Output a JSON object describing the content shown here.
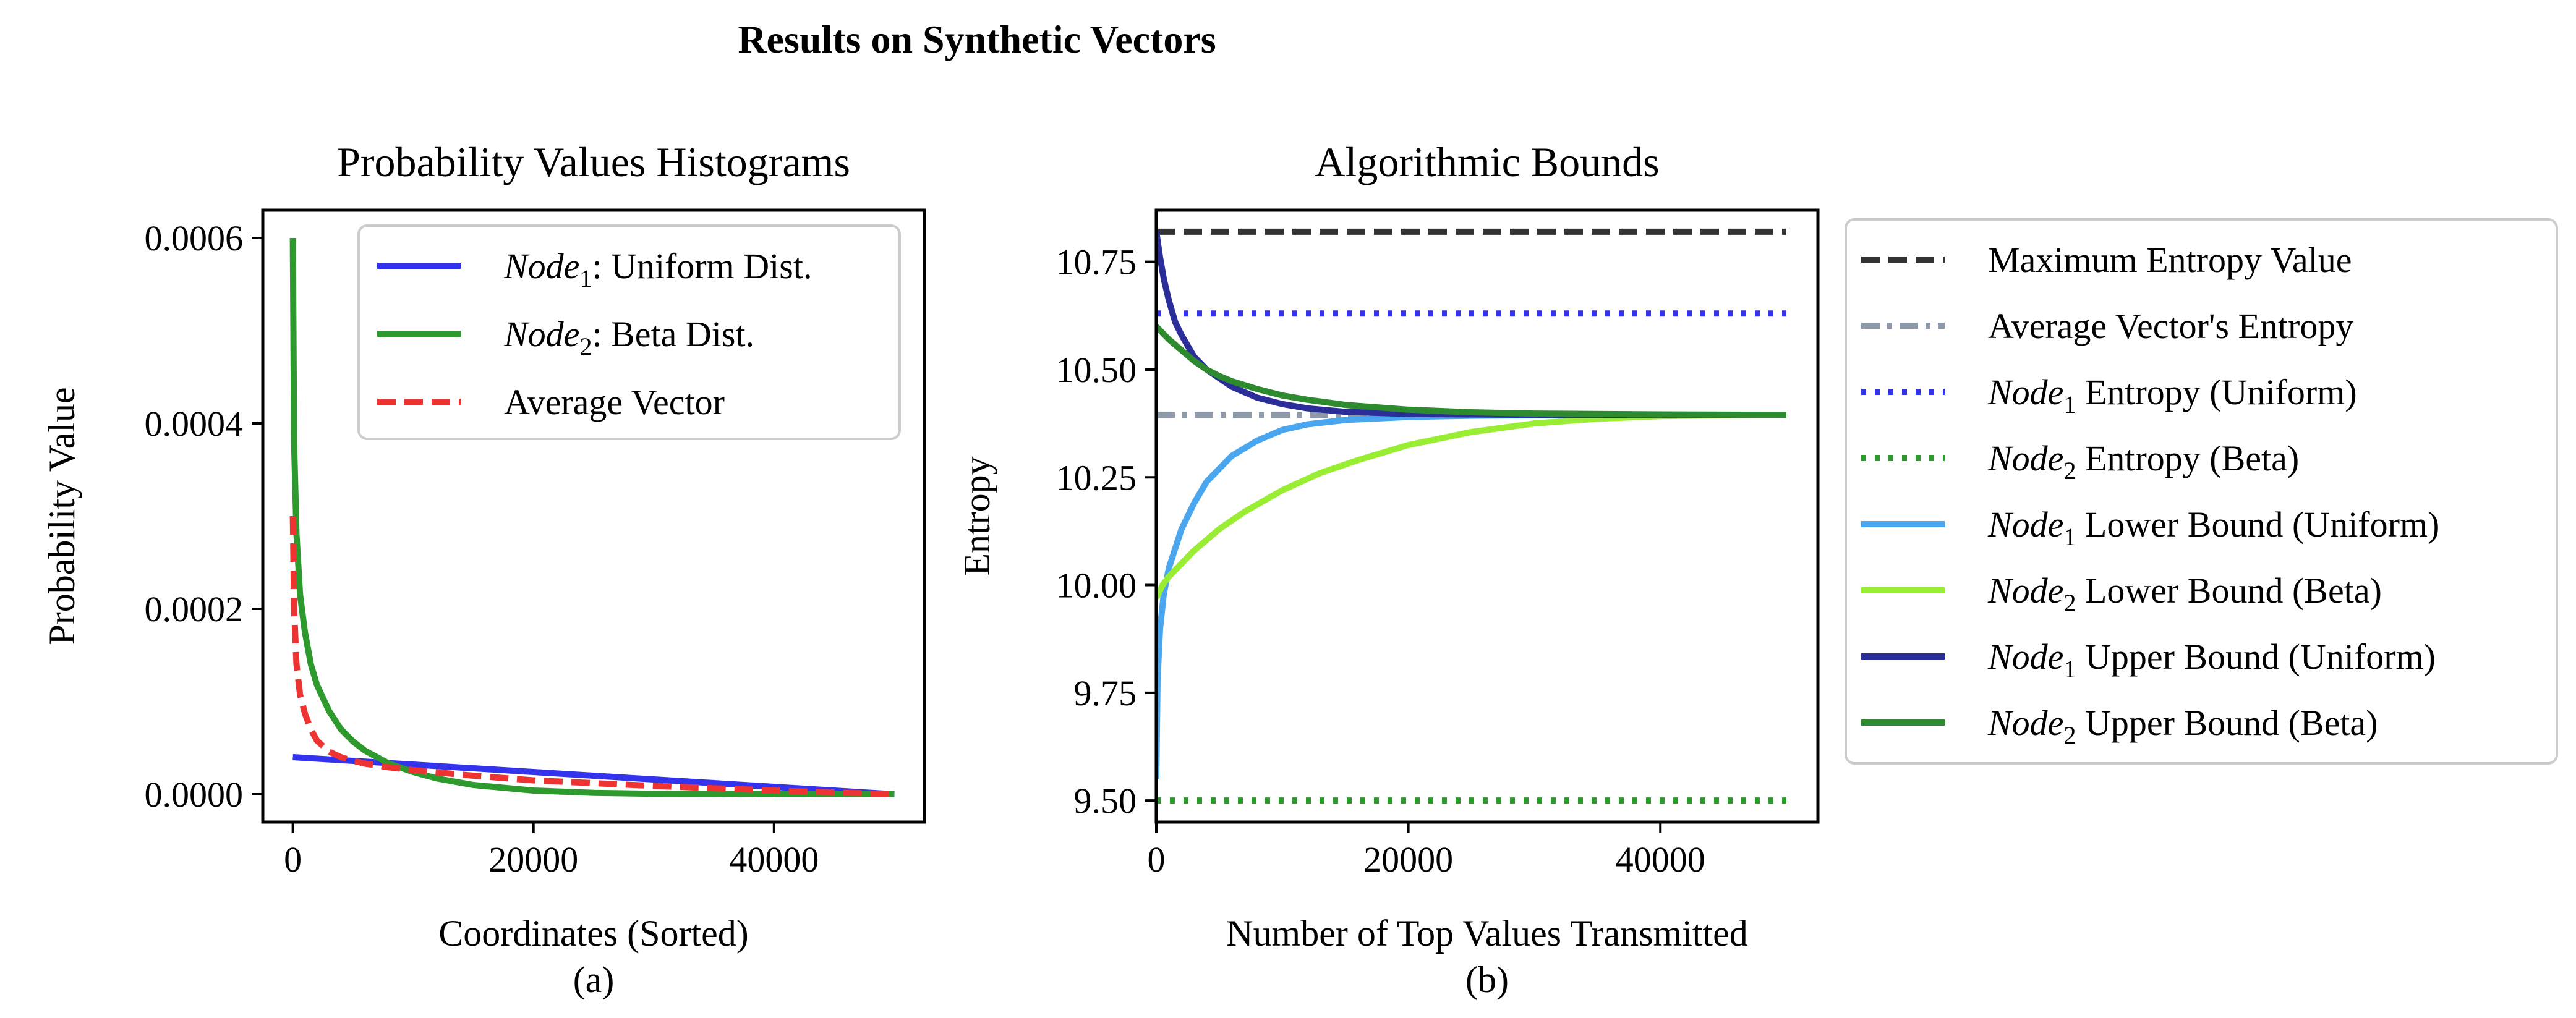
{
  "figure": {
    "suptitle": "Results on Synthetic Vectors"
  },
  "chart_data": [
    {
      "type": "line",
      "title": "Probability Values Histograms",
      "xlabel": "Coordinates (Sorted)",
      "ylabel": "Probability Value",
      "caption": "(a)",
      "xlim": [
        -2500,
        52500
      ],
      "ylim": [
        -3e-05,
        0.00063
      ],
      "xticks": [
        0,
        20000,
        40000
      ],
      "xtick_labels": [
        "0",
        "20000",
        "40000"
      ],
      "yticks": [
        0.0,
        0.0002,
        0.0004,
        0.0006
      ],
      "ytick_labels": [
        "0.0000",
        "0.0002",
        "0.0004",
        "0.0006"
      ],
      "legend_position": "top-right",
      "series": [
        {
          "name": "Node1: Uniform Dist.",
          "legend": {
            "italic": "Node",
            "sub": "1",
            "rest": ": Uniform Dist."
          },
          "color": "#3333ee",
          "dash": "solid",
          "x": [
            0,
            10000,
            20000,
            30000,
            40000,
            50000
          ],
          "y": [
            4e-05,
            3.2e-05,
            2.4e-05,
            1.6e-05,
            8e-06,
            0.0
          ]
        },
        {
          "name": "Node2: Beta Dist.",
          "legend": {
            "italic": "Node",
            "sub": "2",
            "rest": ": Beta Dist."
          },
          "color": "#2e9a2e",
          "dash": "solid",
          "x": [
            0,
            100,
            300,
            600,
            1000,
            1500,
            2000,
            3000,
            4000,
            5000,
            6000,
            8000,
            10000,
            12000,
            15000,
            20000,
            25000,
            30000,
            40000,
            50000
          ],
          "y": [
            0.0006,
            0.00038,
            0.00028,
            0.000215,
            0.000175,
            0.00014,
            0.000118,
            9e-05,
            7e-05,
            5.7e-05,
            4.7e-05,
            3.3e-05,
            2.4e-05,
            1.7e-05,
            1e-05,
            4e-06,
            1.5e-06,
            5e-07,
            0.0,
            0.0
          ]
        },
        {
          "name": "Average Vector",
          "legend": {
            "italic": "",
            "sub": "",
            "rest": "Average Vector"
          },
          "color": "#ee3333",
          "dash": "dashed",
          "x": [
            0,
            100,
            300,
            600,
            1000,
            1500,
            2000,
            3000,
            4000,
            5000,
            6000,
            8000,
            10000,
            15000,
            20000,
            30000,
            40000,
            50000
          ],
          "y": [
            0.0003,
            0.0002,
            0.00014,
            0.000107,
            8.7e-05,
            7e-05,
            5.8e-05,
            4.6e-05,
            4e-05,
            3.6e-05,
            3.3e-05,
            2.9e-05,
            2.6e-05,
            2e-05,
            1.5e-05,
            9e-06,
            4e-06,
            0.0
          ]
        }
      ]
    },
    {
      "type": "line",
      "title": "Algorithmic Bounds",
      "xlabel": "Number of Top Values Transmitted",
      "ylabel": "Entropy",
      "caption": "(b)",
      "xlim": [
        0,
        52500
      ],
      "ylim": [
        9.45,
        10.87
      ],
      "xticks": [
        0,
        20000,
        40000
      ],
      "xtick_labels": [
        "0",
        "20000",
        "40000"
      ],
      "yticks": [
        9.5,
        9.75,
        10.0,
        10.25,
        10.5,
        10.75
      ],
      "ytick_labels": [
        "9.50",
        "9.75",
        "10.00",
        "10.25",
        "10.50",
        "10.75"
      ],
      "legend_position": "outside-right",
      "series": [
        {
          "name": "Maximum Entropy Value",
          "legend": {
            "italic": "",
            "sub": "",
            "rest": "Maximum Entropy Value"
          },
          "color": "#333333",
          "dash": "dashed",
          "x": [
            0,
            50000
          ],
          "y": [
            10.82,
            10.82
          ]
        },
        {
          "name": "Average Vector's Entropy",
          "legend": {
            "italic": "",
            "sub": "",
            "rest": "Average Vector's Entropy"
          },
          "color": "#8e99aa",
          "dash": "dashdot",
          "x": [
            0,
            50000
          ],
          "y": [
            10.395,
            10.395
          ]
        },
        {
          "name": "Node1 Entropy (Uniform)",
          "legend": {
            "italic": "Node",
            "sub": "1",
            "rest": " Entropy (Uniform)"
          },
          "color": "#3333ee",
          "dash": "dotted",
          "x": [
            0,
            50000
          ],
          "y": [
            10.63,
            10.63
          ]
        },
        {
          "name": "Node2 Entropy (Beta)",
          "legend": {
            "italic": "Node",
            "sub": "2",
            "rest": " Entropy (Beta)"
          },
          "color": "#2e9a2e",
          "dash": "dotted",
          "x": [
            0,
            50000
          ],
          "y": [
            9.5,
            9.5
          ]
        },
        {
          "name": "Node1 Lower Bound (Uniform)",
          "legend": {
            "italic": "Node",
            "sub": "1",
            "rest": " Lower Bound (Uniform)"
          },
          "color": "#4aa6ee",
          "dash": "solid",
          "x": [
            0,
            100,
            300,
            600,
            1000,
            2000,
            3000,
            4000,
            5000,
            6000,
            8000,
            10000,
            12000,
            15000,
            20000,
            25000,
            30000,
            40000,
            50000
          ],
          "y": [
            9.55,
            9.78,
            9.9,
            9.98,
            10.04,
            10.13,
            10.19,
            10.24,
            10.27,
            10.3,
            10.335,
            10.36,
            10.373,
            10.383,
            10.39,
            10.393,
            10.394,
            10.395,
            10.395
          ]
        },
        {
          "name": "Node2 Lower Bound (Beta)",
          "legend": {
            "italic": "Node",
            "sub": "2",
            "rest": " Lower Bound (Beta)"
          },
          "color": "#99ee33",
          "dash": "solid",
          "x": [
            0,
            500,
            1000,
            2000,
            3000,
            5000,
            7000,
            10000,
            13000,
            16000,
            20000,
            25000,
            30000,
            35000,
            40000,
            45000,
            50000
          ],
          "y": [
            9.97,
            10.0,
            10.02,
            10.05,
            10.08,
            10.13,
            10.17,
            10.22,
            10.26,
            10.29,
            10.325,
            10.355,
            10.375,
            10.386,
            10.392,
            10.394,
            10.395
          ]
        },
        {
          "name": "Node1 Upper Bound (Uniform)",
          "legend": {
            "italic": "Node",
            "sub": "1",
            "rest": " Upper Bound (Uniform)"
          },
          "color": "#2b2e99",
          "dash": "solid",
          "x": [
            0,
            300,
            600,
            1000,
            1500,
            2000,
            3000,
            4000,
            5000,
            6000,
            8000,
            10000,
            12000,
            15000,
            20000,
            30000,
            40000,
            50000
          ],
          "y": [
            10.82,
            10.76,
            10.71,
            10.66,
            10.61,
            10.58,
            10.53,
            10.5,
            10.48,
            10.46,
            10.435,
            10.42,
            10.41,
            10.402,
            10.397,
            10.395,
            10.395,
            10.395
          ]
        },
        {
          "name": "Node2 Upper Bound (Beta)",
          "legend": {
            "italic": "Node",
            "sub": "2",
            "rest": " Upper Bound (Beta)"
          },
          "color": "#2e8a2e",
          "dash": "solid",
          "x": [
            0,
            500,
            1000,
            2000,
            3000,
            4000,
            5000,
            6000,
            8000,
            10000,
            12000,
            15000,
            20000,
            25000,
            30000,
            40000,
            50000
          ],
          "y": [
            10.6,
            10.585,
            10.57,
            10.545,
            10.52,
            10.5,
            10.485,
            10.473,
            10.455,
            10.44,
            10.43,
            10.418,
            10.407,
            10.401,
            10.398,
            10.396,
            10.395
          ]
        }
      ]
    }
  ]
}
